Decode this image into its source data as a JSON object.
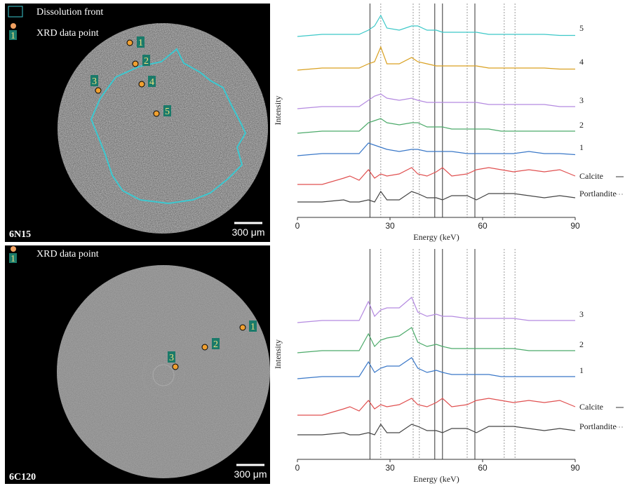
{
  "images": [
    {
      "label": "6N15",
      "scale_bar": "300 μm",
      "legend": [
        "Dissolution front",
        "XRD data point"
      ],
      "legend_icon": "1",
      "points": [
        "1",
        "2",
        "3",
        "4",
        "5"
      ]
    },
    {
      "label": "6C120",
      "scale_bar": "300 μm",
      "legend": [
        "XRD data point"
      ],
      "legend_icon": "1",
      "points": [
        "1",
        "2",
        "3"
      ]
    }
  ],
  "chart_data": [
    {
      "type": "line",
      "x_label": "Energy (keV)",
      "y_label": "Intensity",
      "xlim": [
        0,
        90
      ],
      "xticks": [
        0,
        30,
        60,
        90
      ],
      "reference_lines": {
        "Calcite": [
          23.5,
          44.5,
          47,
          57.5
        ],
        "Portlandite": [
          27,
          37.5,
          39.5,
          55,
          67,
          70.5
        ]
      },
      "x": [
        0,
        8,
        15,
        17,
        20,
        23,
        25,
        27,
        29,
        33,
        37,
        39,
        42,
        45,
        47,
        50,
        55,
        58,
        62,
        66,
        70,
        75,
        80,
        85,
        90
      ],
      "series": [
        {
          "name": "5",
          "color": "#3cc8c8",
          "values": [
            0,
            1,
            1,
            1,
            1,
            3,
            5,
            10,
            4,
            3,
            5,
            5,
            3,
            3,
            2,
            2,
            2,
            2,
            1,
            1,
            1,
            1,
            1,
            0.5,
            0.5
          ]
        },
        {
          "name": "4",
          "color": "#d9a020",
          "values": [
            0,
            1,
            1,
            1,
            1,
            3,
            4,
            11,
            3,
            3,
            6,
            4,
            3,
            2,
            2,
            2,
            2,
            2,
            1,
            1,
            1,
            1,
            1,
            0.5,
            0.5
          ]
        },
        {
          "name": "3",
          "color": "#b48ae0",
          "values": [
            0,
            1,
            1,
            1,
            1,
            4,
            6,
            7,
            5,
            4,
            5,
            4,
            3,
            3,
            3,
            3,
            3,
            3,
            2,
            2,
            2,
            2,
            2,
            1,
            1
          ]
        },
        {
          "name": "2",
          "color": "#4caa6a",
          "values": [
            0,
            1,
            1,
            1,
            1,
            5,
            6,
            7,
            5,
            4,
            5,
            5,
            3,
            3,
            3,
            2,
            2,
            2,
            2,
            1,
            1,
            1,
            1,
            1,
            1
          ]
        },
        {
          "name": "1",
          "color": "#3a78c8",
          "values": [
            0,
            1,
            1,
            1,
            1,
            6,
            5,
            4,
            3,
            2,
            3,
            3,
            2,
            2,
            2,
            2,
            1,
            1,
            1,
            1,
            1,
            2,
            1,
            1,
            0.5
          ]
        },
        {
          "name": "Calcite",
          "color": "#e05050",
          "values": [
            0,
            0,
            3,
            4,
            2,
            7,
            3,
            5,
            4,
            5,
            8,
            5,
            4,
            6,
            8,
            4,
            5,
            7,
            8,
            7,
            6,
            7,
            6,
            7,
            4
          ]
        },
        {
          "name": "Portlandite",
          "color": "#444444",
          "values": [
            0,
            0,
            1,
            0,
            0,
            1,
            0,
            5,
            1,
            1,
            5,
            4,
            2,
            2,
            1,
            3,
            3,
            1,
            4,
            4,
            4,
            3,
            2,
            3,
            2
          ]
        }
      ]
    },
    {
      "type": "line",
      "x_label": "Energy (keV)",
      "y_label": "Intensity",
      "xlim": [
        0,
        90
      ],
      "xticks": [
        0,
        30,
        60,
        90
      ],
      "reference_lines": {
        "Calcite": [
          23.5,
          44.5,
          47,
          57.5
        ],
        "Portlandite": [
          27,
          37.5,
          39.5,
          55,
          67,
          70.5
        ]
      },
      "x": [
        0,
        8,
        15,
        17,
        20,
        23,
        25,
        27,
        29,
        33,
        37,
        39,
        42,
        45,
        47,
        50,
        55,
        58,
        62,
        66,
        70,
        75,
        80,
        85,
        90
      ],
      "series": [
        {
          "name": "3",
          "color": "#b48ae0",
          "values": [
            0,
            1,
            1,
            1,
            1,
            10,
            3,
            6,
            7,
            7,
            12,
            5,
            3,
            4,
            3,
            3,
            2,
            2,
            2,
            2,
            2,
            1,
            1,
            1,
            1
          ]
        },
        {
          "name": "2",
          "color": "#4caa6a",
          "values": [
            0,
            1,
            1,
            1,
            1,
            9,
            3,
            6,
            7,
            8,
            12,
            5,
            3,
            4,
            3,
            2,
            2,
            2,
            2,
            2,
            2,
            1,
            1,
            1,
            1
          ]
        },
        {
          "name": "1",
          "color": "#3a78c8",
          "values": [
            0,
            1,
            1,
            1,
            1,
            8,
            3,
            5,
            6,
            6,
            10,
            5,
            3,
            4,
            3,
            2,
            2,
            2,
            2,
            1,
            1,
            1,
            1,
            1,
            1
          ]
        },
        {
          "name": "Calcite",
          "color": "#e05050",
          "values": [
            0,
            0,
            3,
            4,
            2,
            7,
            3,
            5,
            4,
            5,
            8,
            5,
            4,
            6,
            8,
            4,
            5,
            7,
            8,
            7,
            6,
            7,
            6,
            7,
            4
          ]
        },
        {
          "name": "Portlandite",
          "color": "#444444",
          "values": [
            0,
            0,
            1,
            0,
            0,
            1,
            0,
            5,
            1,
            1,
            5,
            4,
            2,
            2,
            1,
            3,
            3,
            1,
            4,
            4,
            4,
            3,
            2,
            3,
            2
          ]
        }
      ]
    }
  ]
}
